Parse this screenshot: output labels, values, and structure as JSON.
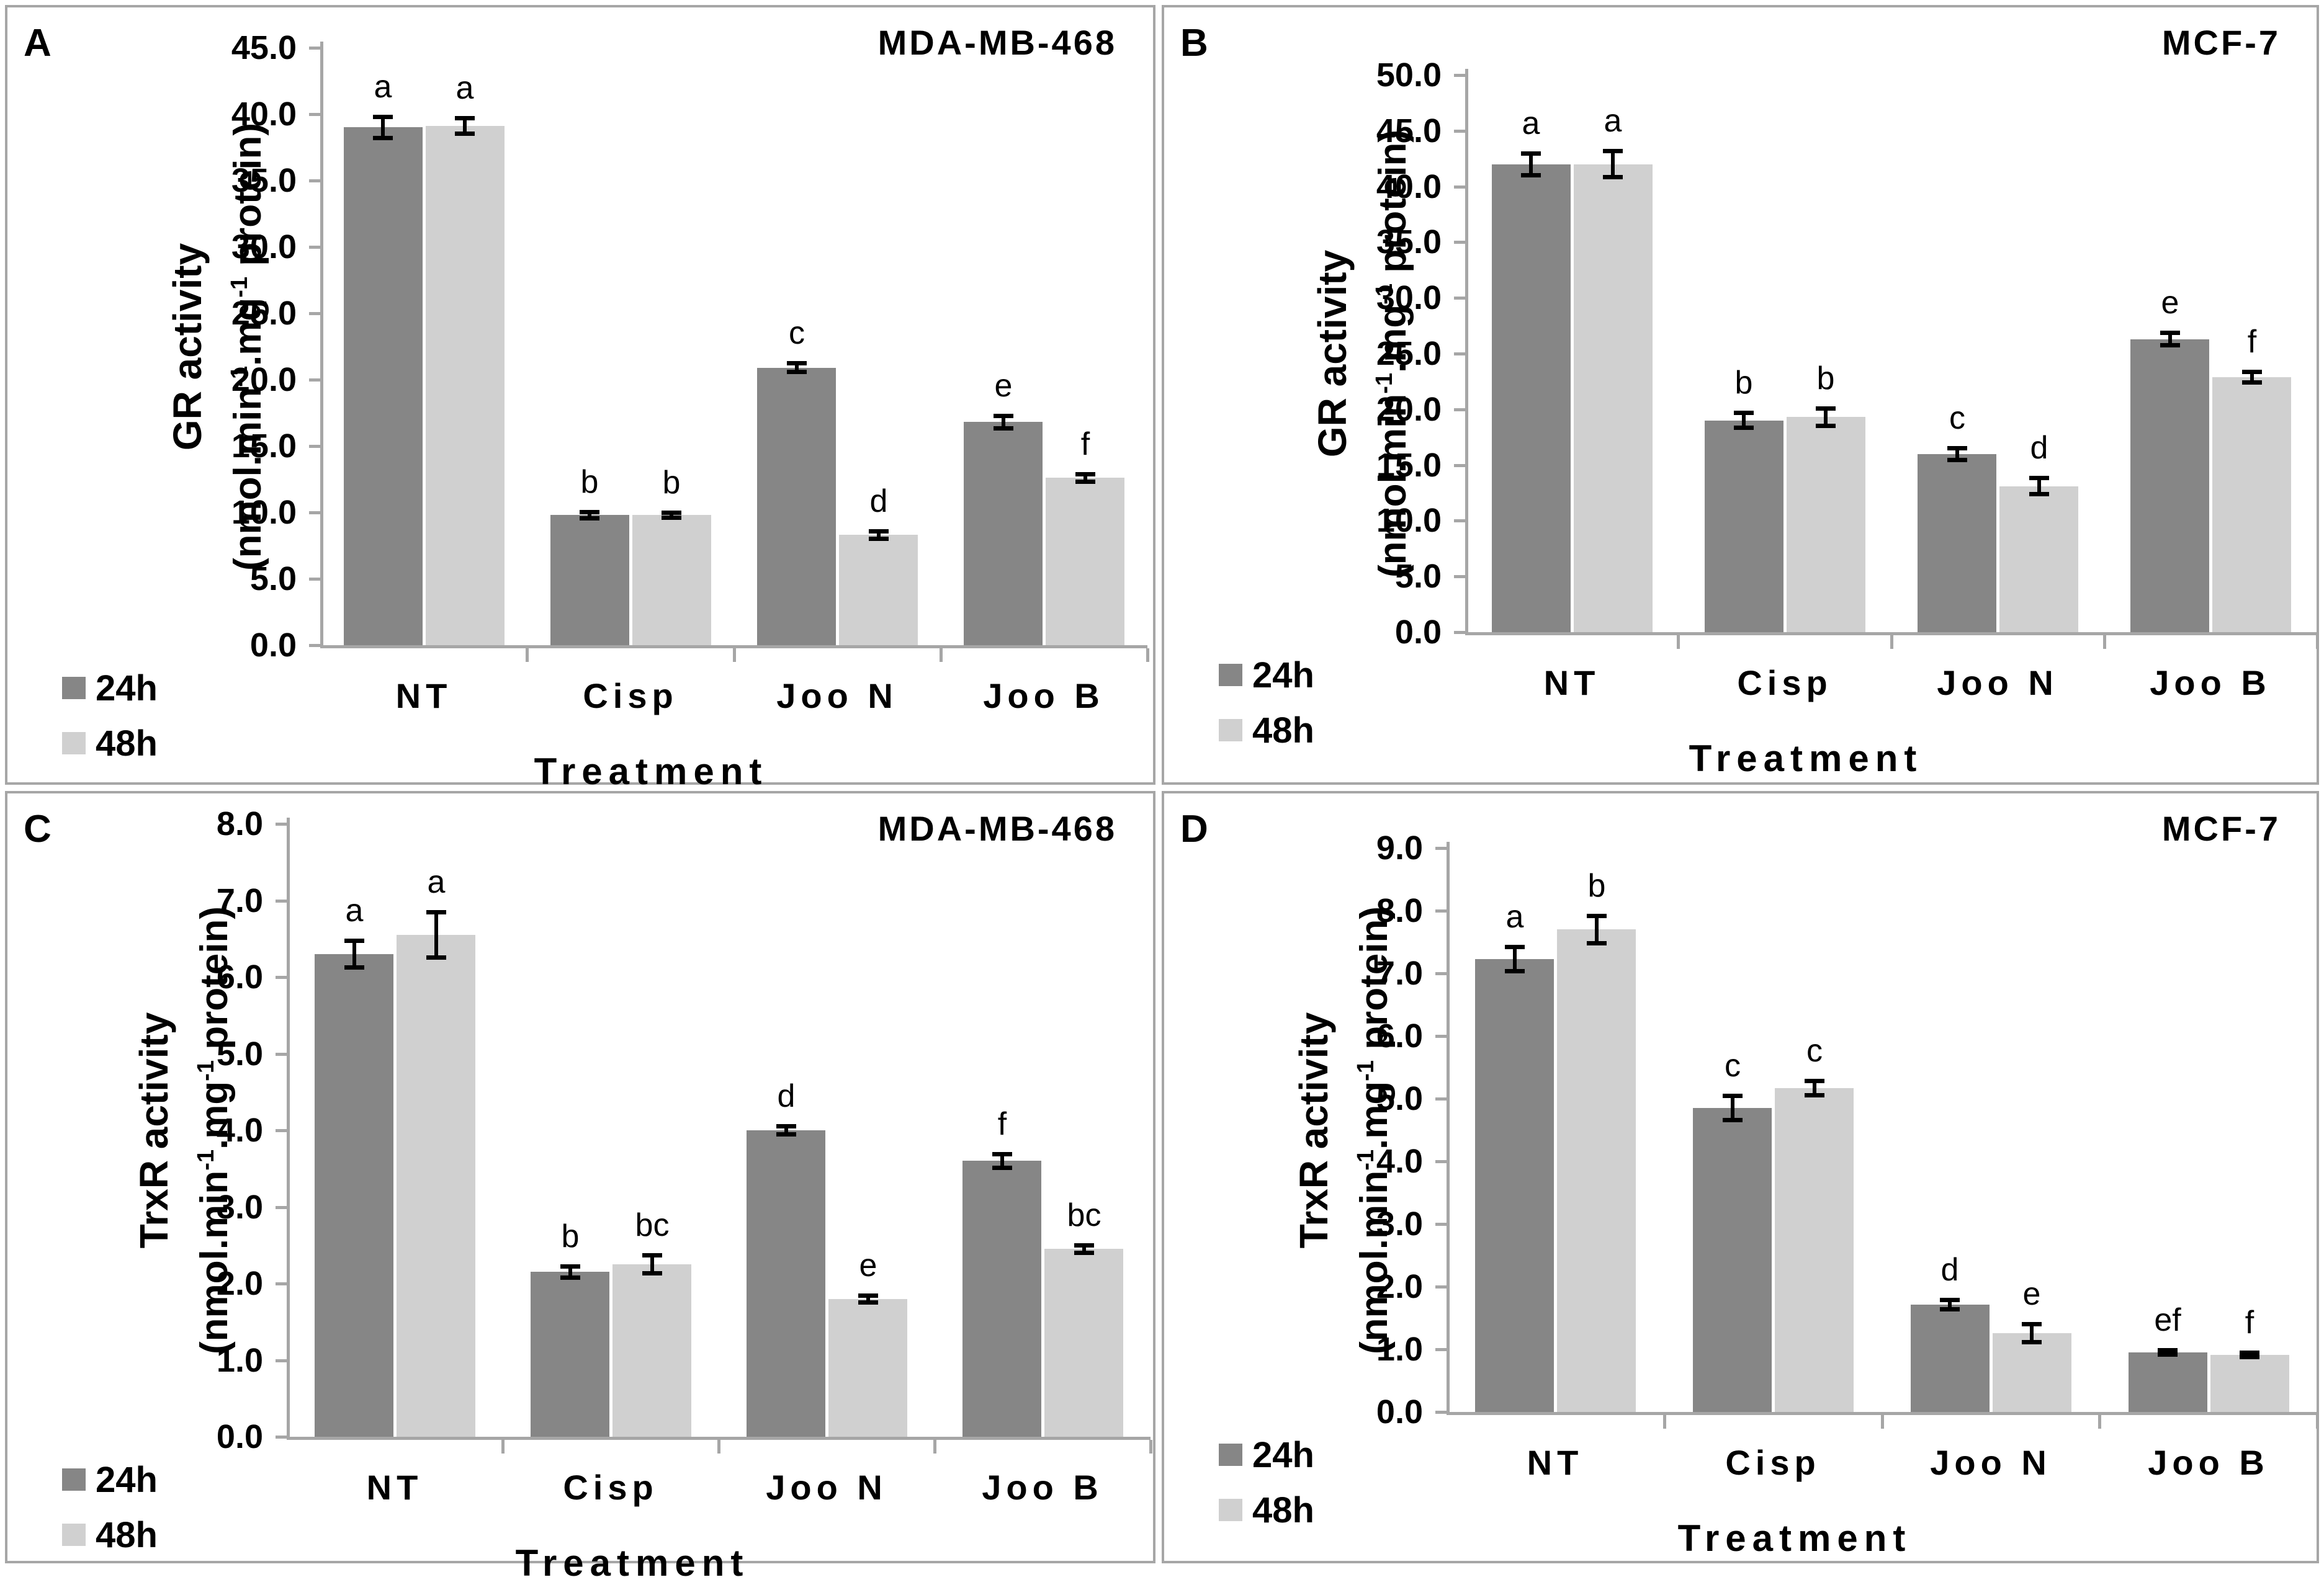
{
  "figure": {
    "background": "#ffffff",
    "panel_border_color": "#a6a6a6"
  },
  "colors": {
    "bar_24h": "#868686",
    "bar_48h": "#d0d0d0",
    "axis": "#a6a6a6",
    "error_bar": "#000000",
    "text": "#000000"
  },
  "legend": {
    "items": [
      {
        "label": "24h",
        "color": "#868686"
      },
      {
        "label": "48h",
        "color": "#d0d0d0"
      }
    ]
  },
  "x_axis_title": "Treatment",
  "y_units_parts": {
    "p1": "(nmol.min",
    "s1": "-1",
    "p2": ".mg",
    "s2": "-1",
    "p3": " protein)"
  },
  "chart_data": [
    {
      "type": "bar",
      "panel": "A",
      "cell_line": "MDA-MB-468",
      "ylabel": "GR activity",
      "ylabel_units": "(nmol.min-1.mg-1 protein)",
      "xlabel": "Treatment",
      "ylim": [
        0,
        45
      ],
      "ytick_step": 5,
      "ytick_labels": [
        "0.0",
        "5.0",
        "10.0",
        "15.0",
        "20.0",
        "25.0",
        "30.0",
        "35.0",
        "40.0",
        "45.0"
      ],
      "categories": [
        "NT",
        "Cisp",
        "Joo N",
        "Joo B"
      ],
      "grid": false,
      "legend_position": "bottom-left",
      "series": [
        {
          "name": "24h",
          "values": [
            39.0,
            9.8,
            20.9,
            16.8
          ],
          "errors": [
            0.8,
            0.25,
            0.35,
            0.5
          ],
          "sig": [
            "a",
            "b",
            "c",
            "e"
          ]
        },
        {
          "name": "48h",
          "values": [
            39.1,
            9.8,
            8.3,
            12.6
          ],
          "errors": [
            0.6,
            0.2,
            0.3,
            0.3
          ],
          "sig": [
            "a",
            "b",
            "d",
            "f"
          ]
        }
      ]
    },
    {
      "type": "bar",
      "panel": "B",
      "cell_line": "MCF-7",
      "ylabel": "GR activity",
      "ylabel_units": "(nmol.min-1.mg-1 protein)",
      "xlabel": "Treatment",
      "ylim": [
        0,
        50
      ],
      "ytick_step": 5,
      "ytick_labels": [
        "0.0",
        "5.0",
        "10.0",
        "15.0",
        "20.0",
        "25.0",
        "30.0",
        "35.0",
        "40.0",
        "45.0",
        "50.0"
      ],
      "categories": [
        "NT",
        "Cisp",
        "Joo N",
        "Joo B"
      ],
      "grid": false,
      "legend_position": "bottom-left",
      "series": [
        {
          "name": "24h",
          "values": [
            42.0,
            19.0,
            16.0,
            26.3
          ],
          "errors": [
            1.0,
            0.7,
            0.55,
            0.6
          ],
          "sig": [
            "a",
            "b",
            "c",
            "e"
          ]
        },
        {
          "name": "48h",
          "values": [
            42.0,
            19.3,
            13.1,
            22.9
          ],
          "errors": [
            1.2,
            0.8,
            0.75,
            0.5
          ],
          "sig": [
            "a",
            "b",
            "d",
            "f"
          ]
        }
      ]
    },
    {
      "type": "bar",
      "panel": "C",
      "cell_line": "MDA-MB-468",
      "ylabel": "TrxR activity",
      "ylabel_units": "(nmol.min-1.mg-1 protein)",
      "xlabel": "Treatment",
      "ylim": [
        0,
        8
      ],
      "ytick_step": 1,
      "ytick_labels": [
        "0.0",
        "1.0",
        "2.0",
        "3.0",
        "4.0",
        "5.0",
        "6.0",
        "7.0",
        "8.0"
      ],
      "categories": [
        "NT",
        "Cisp",
        "Joo N",
        "Joo B"
      ],
      "grid": false,
      "legend_position": "bottom-left",
      "series": [
        {
          "name": "24h",
          "values": [
            6.3,
            2.15,
            4.0,
            3.6
          ],
          "errors": [
            0.18,
            0.08,
            0.06,
            0.09
          ],
          "sig": [
            "a",
            "b",
            "d",
            "f"
          ]
        },
        {
          "name": "48h",
          "values": [
            6.55,
            2.25,
            1.8,
            2.45
          ],
          "errors": [
            0.3,
            0.12,
            0.05,
            0.05
          ],
          "sig": [
            "a",
            "bc",
            "e",
            "bc"
          ]
        }
      ]
    },
    {
      "type": "bar",
      "panel": "D",
      "cell_line": "MCF-7",
      "ylabel": "TrxR activity",
      "ylabel_units": "(nmol.min-1.mg-1 protein)",
      "xlabel": "Treatment",
      "ylim": [
        0,
        9
      ],
      "ytick_step": 1,
      "ytick_labels": [
        "0.0",
        "1.0",
        "2.0",
        "3.0",
        "4.0",
        "5.0",
        "6.0",
        "7.0",
        "8.0",
        "9.0"
      ],
      "categories": [
        "NT",
        "Cisp",
        "Joo N",
        "Joo B"
      ],
      "grid": false,
      "legend_position": "bottom-left",
      "series": [
        {
          "name": "24h",
          "values": [
            7.23,
            4.85,
            1.71,
            0.95
          ],
          "errors": [
            0.2,
            0.2,
            0.08,
            0.04
          ],
          "sig": [
            "a",
            "c",
            "d",
            "ef"
          ]
        },
        {
          "name": "48h",
          "values": [
            7.7,
            5.17,
            1.26,
            0.91
          ],
          "errors": [
            0.22,
            0.12,
            0.15,
            0.04
          ],
          "sig": [
            "b",
            "c",
            "e",
            "f"
          ]
        }
      ]
    }
  ]
}
